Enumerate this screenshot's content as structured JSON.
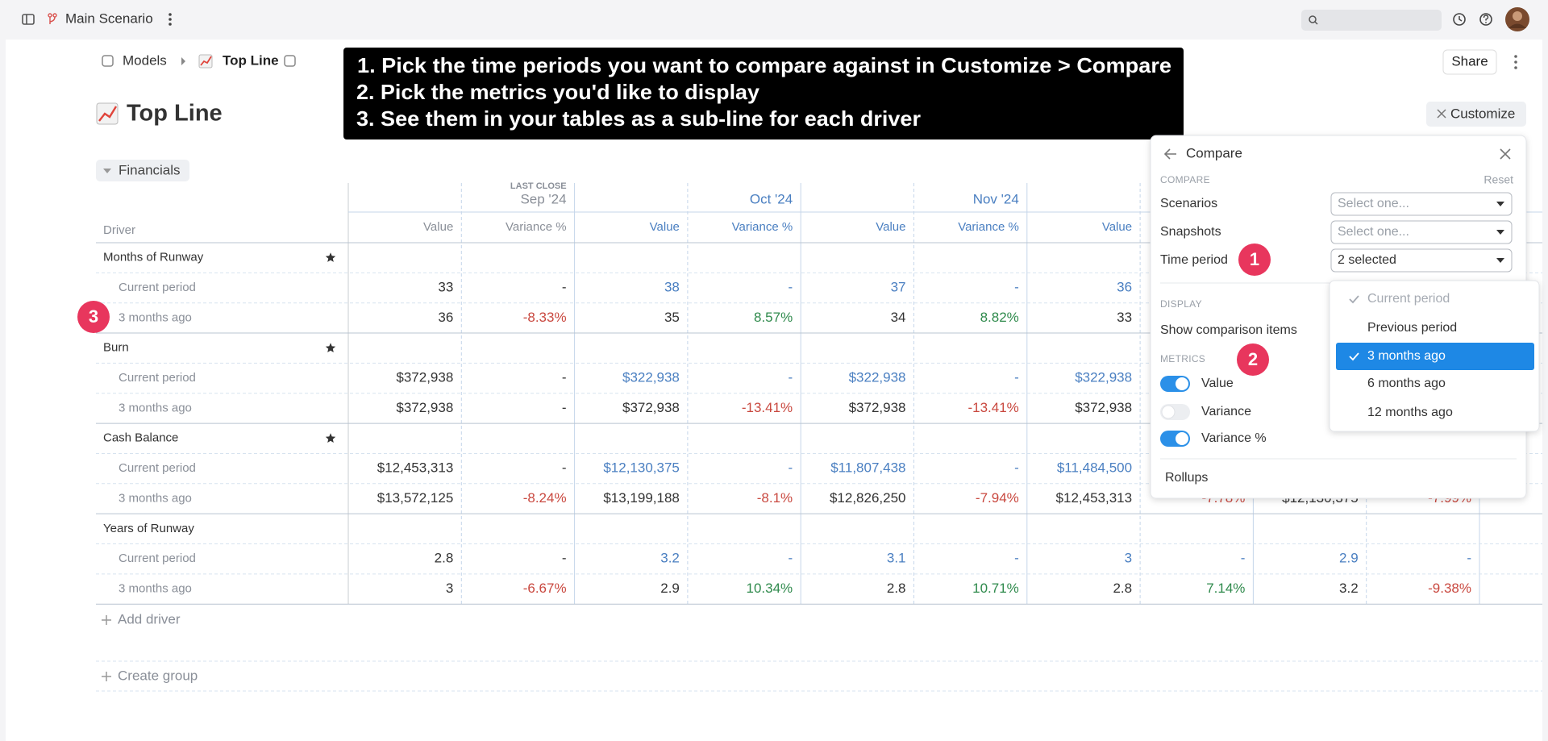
{
  "topbar": {
    "scenario": "Main Scenario"
  },
  "breadcrumb": [
    "Models",
    "Top Line"
  ],
  "share": "Share",
  "title": "Top Line",
  "customize": "Customize",
  "callout": [
    "1.  Pick the time periods you want to compare against in Customize > Compare",
    "2. Pick the metrics you'd like to display",
    "3. See them in your tables as a sub-line for each driver"
  ],
  "group": "Financials",
  "table": {
    "driver_header": "Driver",
    "periods": [
      {
        "note": "LAST CLOSE",
        "name": "Sep '24",
        "columns": [
          "Value",
          "Variance %"
        ]
      },
      {
        "name": "Oct '24",
        "columns": [
          "Value",
          "Variance %"
        ]
      },
      {
        "name": "Nov '24",
        "columns": [
          "Value",
          "Variance %"
        ]
      },
      {
        "columns": [
          "Value"
        ]
      }
    ],
    "drivers": [
      {
        "name": "Months of Runway",
        "starred": true,
        "rows": [
          {
            "label": "Current period",
            "cells": [
              "33",
              "-",
              "38",
              "-",
              "37",
              "-",
              "36"
            ]
          },
          {
            "label": "3 months ago",
            "cells": [
              "36",
              "-8.33%",
              "35",
              "8.57%",
              "34",
              "8.82%",
              "33"
            ]
          }
        ]
      },
      {
        "name": "Burn",
        "starred": true,
        "rows": [
          {
            "label": "Current period",
            "cells": [
              "$372,938",
              "-",
              "$322,938",
              "-",
              "$322,938",
              "-",
              "$322,938"
            ]
          },
          {
            "label": "3 months ago",
            "cells": [
              "$372,938",
              "-",
              "$372,938",
              "-13.41%",
              "$372,938",
              "-13.41%",
              "$372,938"
            ]
          }
        ]
      },
      {
        "name": "Cash Balance",
        "starred": true,
        "rows": [
          {
            "label": "Current period",
            "cells": [
              "$12,453,313",
              "-",
              "$12,130,375",
              "-",
              "$11,807,438",
              "-",
              "$11,484,500"
            ]
          },
          {
            "label": "3 months ago",
            "cells": [
              "$13,572,125",
              "-8.24%",
              "$13,199,188",
              "-8.1%",
              "$12,826,250",
              "-7.94%",
              "$12,453,313",
              "-7.78%",
              "$12,130,375",
              "-7.99%"
            ]
          }
        ]
      },
      {
        "name": "Years of Runway",
        "starred": false,
        "rows": [
          {
            "label": "Current period",
            "cells": [
              "2.8",
              "-",
              "3.2",
              "-",
              "3.1",
              "-",
              "3",
              "-",
              "2.9",
              "-"
            ]
          },
          {
            "label": "3 months ago",
            "cells": [
              "3",
              "-6.67%",
              "2.9",
              "10.34%",
              "2.8",
              "10.71%",
              "2.8",
              "7.14%",
              "3.2",
              "-9.38%"
            ]
          }
        ]
      }
    ],
    "add_driver": "Add driver",
    "create_group": "Create group"
  },
  "panel": {
    "title": "Compare",
    "section": "COMPARE",
    "reset": "Reset",
    "selects": [
      {
        "label": "Scenarios",
        "value": "Select one...",
        "placeholder": true
      },
      {
        "label": "Snapshots",
        "value": "Select one...",
        "placeholder": true
      },
      {
        "label": "Time period",
        "value": "2 selected",
        "placeholder": false
      }
    ],
    "display": "DISPLAY",
    "show_items": "Show comparison items",
    "metrics": "METRICS",
    "toggles": [
      {
        "label": "Value",
        "on": true
      },
      {
        "label": "Variance",
        "on": false
      },
      {
        "label": "Variance %",
        "on": true
      }
    ],
    "rollups": "Rollups"
  },
  "dropdown": [
    {
      "label": "Current period",
      "checked": true,
      "disabled": true
    },
    {
      "label": "Previous period",
      "checked": false
    },
    {
      "label": "3 months ago",
      "checked": true,
      "active": true
    },
    {
      "label": "6 months ago",
      "checked": false
    },
    {
      "label": "12 months ago",
      "checked": false
    }
  ],
  "badges": [
    "1",
    "2",
    "3"
  ]
}
